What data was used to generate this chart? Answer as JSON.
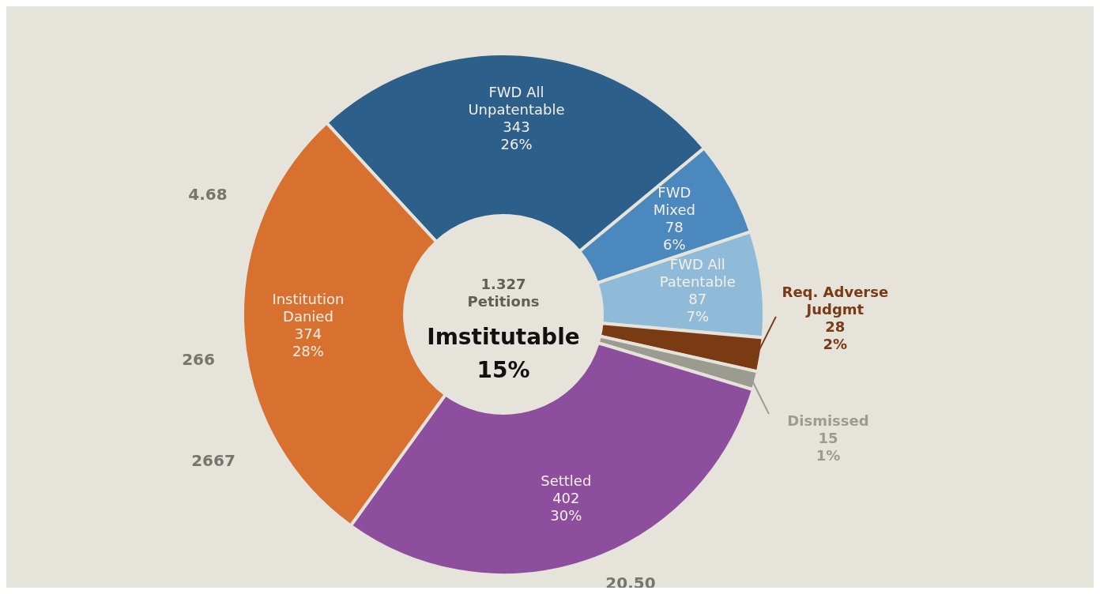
{
  "chart_data": {
    "type": "donut",
    "title": "Imstitutable 15%",
    "subtitle": "1.327 Petitions",
    "categories": [
      "FWD All Unpatentable",
      "FWD Mixed",
      "FWD All Patentable",
      "Req. Adverse Judgmt",
      "Dismissed",
      "Settled",
      "Institution Danied"
    ],
    "values": [
      343,
      78,
      87,
      28,
      15,
      402,
      374
    ],
    "colors": [
      "#2d5f8b",
      "#4b88bd",
      "#8fbbd9",
      "#7a3a14",
      "#9c9b92",
      "#8d4f9d",
      "#d8702f"
    ],
    "value_labels": [
      "343\n26%",
      "78\n6%",
      "87\n7%",
      "28\n2%",
      "15\n1%",
      "402\n30%",
      "374\n28%"
    ],
    "annotations": [
      "4.68",
      "266",
      "2667",
      "20.50"
    ],
    "legend": false
  }
}
